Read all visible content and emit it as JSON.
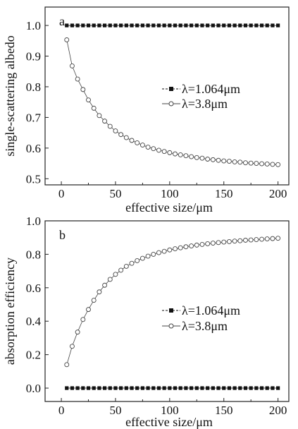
{
  "chart_data": [
    {
      "panel_label": "a",
      "type": "line",
      "xlabel": "effective size/μm",
      "ylabel": "single-scattering albedo",
      "xlim": [
        -15,
        210
      ],
      "ylim": [
        0.48,
        1.06
      ],
      "xticks": [
        0,
        50,
        100,
        150,
        200
      ],
      "yticks": [
        0.5,
        0.6,
        0.7,
        0.8,
        0.9,
        1.0
      ],
      "ytick_labels": [
        "0.5",
        "0.6",
        "0.7",
        "0.8",
        "0.9",
        "1.0"
      ],
      "legend_position": "center-right",
      "series": [
        {
          "name": "λ=1.064μm",
          "marker": "filled-square",
          "color": "#111111",
          "x": [
            5,
            10,
            15,
            20,
            25,
            30,
            35,
            40,
            45,
            50,
            55,
            60,
            65,
            70,
            75,
            80,
            85,
            90,
            95,
            100,
            105,
            110,
            115,
            120,
            125,
            130,
            135,
            140,
            145,
            150,
            155,
            160,
            165,
            170,
            175,
            180,
            185,
            190,
            195,
            200
          ],
          "y": [
            1.0,
            1.0,
            1.0,
            1.0,
            1.0,
            1.0,
            1.0,
            1.0,
            1.0,
            1.0,
            1.0,
            1.0,
            1.0,
            1.0,
            1.0,
            1.0,
            1.0,
            1.0,
            1.0,
            1.0,
            1.0,
            1.0,
            1.0,
            1.0,
            1.0,
            1.0,
            1.0,
            1.0,
            1.0,
            1.0,
            1.0,
            1.0,
            1.0,
            1.0,
            1.0,
            1.0,
            1.0,
            1.0,
            1.0,
            1.0
          ]
        },
        {
          "name": "λ=3.8μm",
          "marker": "open-circle",
          "color": "#444444",
          "x": [
            5,
            10,
            15,
            20,
            25,
            30,
            35,
            40,
            45,
            50,
            55,
            60,
            65,
            70,
            75,
            80,
            85,
            90,
            95,
            100,
            105,
            110,
            115,
            120,
            125,
            130,
            135,
            140,
            145,
            150,
            155,
            160,
            165,
            170,
            175,
            180,
            185,
            190,
            195,
            200
          ],
          "y": [
            0.953,
            0.868,
            0.825,
            0.791,
            0.757,
            0.73,
            0.706,
            0.688,
            0.671,
            0.656,
            0.644,
            0.634,
            0.625,
            0.617,
            0.61,
            0.603,
            0.598,
            0.593,
            0.589,
            0.585,
            0.581,
            0.578,
            0.575,
            0.572,
            0.569,
            0.567,
            0.564,
            0.562,
            0.56,
            0.558,
            0.557,
            0.555,
            0.554,
            0.552,
            0.551,
            0.55,
            0.549,
            0.548,
            0.547,
            0.546
          ]
        }
      ]
    },
    {
      "panel_label": "b",
      "type": "line",
      "xlabel": "effective size/μm",
      "ylabel": "absorption efficiency",
      "xlim": [
        -15,
        210
      ],
      "ylim": [
        -0.08,
        1.0
      ],
      "xticks": [
        0,
        50,
        100,
        150,
        200
      ],
      "yticks": [
        0.0,
        0.2,
        0.4,
        0.6,
        0.8,
        1.0
      ],
      "ytick_labels": [
        "0.0",
        "0.2",
        "0.4",
        "0.6",
        "0.8",
        "1.0"
      ],
      "legend_position": "center-right",
      "series": [
        {
          "name": "λ=1.064μm",
          "marker": "filled-square",
          "color": "#111111",
          "x": [
            5,
            10,
            15,
            20,
            25,
            30,
            35,
            40,
            45,
            50,
            55,
            60,
            65,
            70,
            75,
            80,
            85,
            90,
            95,
            100,
            105,
            110,
            115,
            120,
            125,
            130,
            135,
            140,
            145,
            150,
            155,
            160,
            165,
            170,
            175,
            180,
            185,
            190,
            195,
            200
          ],
          "y": [
            0.0,
            0.0,
            0.0,
            0.0,
            0.0,
            0.0,
            0.0,
            0.0,
            0.0,
            0.0,
            0.0,
            0.0,
            0.0,
            0.0,
            0.0,
            0.0,
            0.0,
            0.0,
            0.0,
            0.0,
            0.0,
            0.0,
            0.0,
            0.0,
            0.0,
            0.0,
            0.0,
            0.0,
            0.0,
            0.0,
            0.0,
            0.0,
            0.0,
            0.0,
            0.0,
            0.0,
            0.0,
            0.0,
            0.0,
            0.0
          ]
        },
        {
          "name": "λ=3.8μm",
          "marker": "open-circle",
          "color": "#444444",
          "x": [
            5,
            10,
            15,
            20,
            25,
            30,
            35,
            40,
            45,
            50,
            55,
            60,
            65,
            70,
            75,
            80,
            85,
            90,
            95,
            100,
            105,
            110,
            115,
            120,
            125,
            130,
            135,
            140,
            145,
            150,
            155,
            160,
            165,
            170,
            175,
            180,
            185,
            190,
            195,
            200
          ],
          "y": [
            0.14,
            0.25,
            0.335,
            0.41,
            0.47,
            0.525,
            0.575,
            0.615,
            0.65,
            0.68,
            0.705,
            0.728,
            0.746,
            0.762,
            0.776,
            0.789,
            0.8,
            0.81,
            0.818,
            0.826,
            0.833,
            0.839,
            0.845,
            0.85,
            0.855,
            0.859,
            0.863,
            0.867,
            0.87,
            0.873,
            0.876,
            0.879,
            0.881,
            0.884,
            0.886,
            0.888,
            0.89,
            0.892,
            0.894,
            0.896
          ]
        }
      ]
    }
  ]
}
